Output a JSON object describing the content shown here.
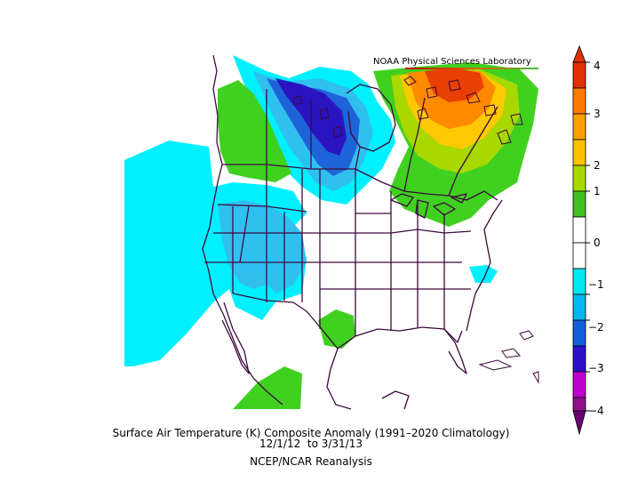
{
  "credit": "NOAA Physical Sciences Laboratory",
  "caption": {
    "line1": "Surface Air Temperature (K) Composite Anomaly (1991–2020 Climatology)",
    "line2": "12/1/12  to 3/31/13",
    "line3": "NCEP/NCAR Reanalysis"
  },
  "colorbar": {
    "ticks": [
      "4",
      "3",
      "2",
      "1",
      "0",
      "−1",
      "−2",
      "−3",
      "−4"
    ],
    "colors": [
      "#e03000",
      "#ff7a00",
      "#ffc000",
      "#a8d800",
      "#40c020",
      "#ffffff",
      "#ffffff",
      "#00e8f0",
      "#00b8f0",
      "#1060d8",
      "#2a10c8",
      "#c000d0",
      "#90108c",
      "#680070"
    ]
  },
  "palette": {
    "ocean": "#ffffff",
    "cyan": "#00f0ff",
    "lightblue": "#30c0f0",
    "blue": "#1e64d8",
    "darkblue": "#2a14c0",
    "green": "#40d020",
    "yellowgreen": "#a8d800",
    "yellow": "#ffc800",
    "orange": "#ff8a00",
    "red": "#e84000",
    "border": "#3c0a3c"
  }
}
